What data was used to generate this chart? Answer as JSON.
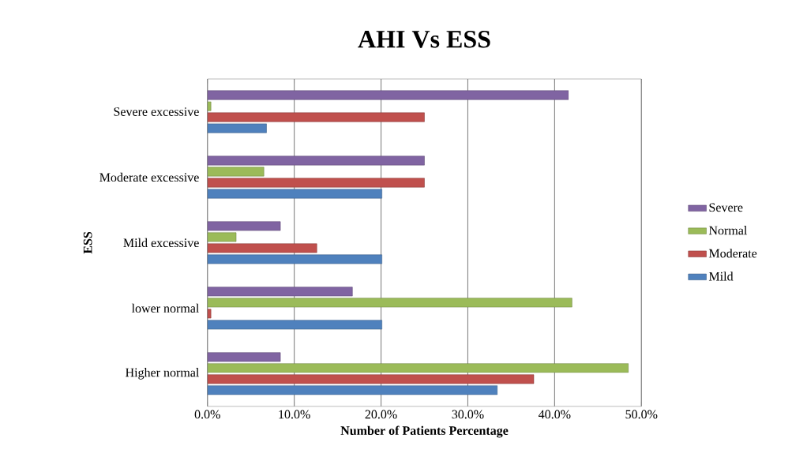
{
  "chart_data": {
    "type": "bar",
    "orientation": "horizontal",
    "title": "AHI Vs ESS",
    "xlabel": "Number of Patients Percentage",
    "ylabel": "ESS",
    "categories": [
      "Severe excessive",
      "Moderate excessive",
      "Mild excessive",
      "lower normal",
      "Higher normal"
    ],
    "series": [
      {
        "name": "Mild",
        "color": "#4f81bd",
        "values": [
          6.8,
          20.1,
          20.1,
          20.1,
          33.4
        ]
      },
      {
        "name": "Moderate",
        "color": "#c0504d",
        "values": [
          25.0,
          25.0,
          12.6,
          0.4,
          37.6
        ]
      },
      {
        "name": "Normal",
        "color": "#9bbb59",
        "values": [
          0.4,
          6.5,
          3.3,
          42.0,
          48.5
        ]
      },
      {
        "name": "Severe",
        "color": "#8064a2",
        "values": [
          41.6,
          25.0,
          8.4,
          16.7,
          8.4
        ]
      }
    ],
    "xlim": [
      0,
      50
    ],
    "xticks": [
      {
        "value": 0,
        "label": "0.0%"
      },
      {
        "value": 10,
        "label": "10.0%"
      },
      {
        "value": 20,
        "label": "20.0%"
      },
      {
        "value": 30,
        "label": "30.0%"
      },
      {
        "value": 40,
        "label": "40.0%"
      },
      {
        "value": 50,
        "label": "50.0%"
      }
    ],
    "grid": "x",
    "legend": "right"
  }
}
